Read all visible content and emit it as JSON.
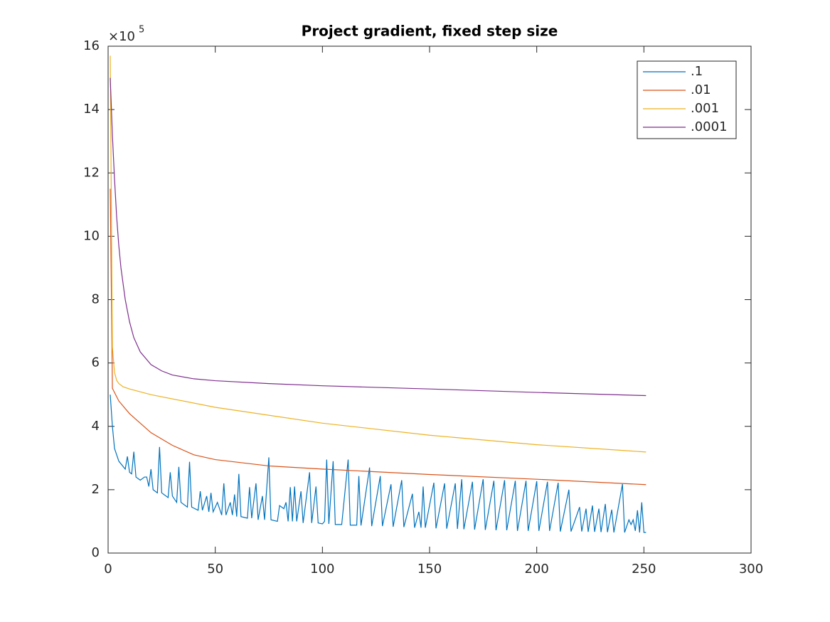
{
  "chart_data": {
    "type": "line",
    "title": "Project gradient, fixed step size",
    "y_multiplier": "×10",
    "y_exponent": "5",
    "xlim": [
      0,
      300
    ],
    "xticks": [
      0,
      50,
      100,
      150,
      200,
      250,
      300
    ],
    "ylim": [
      0,
      16
    ],
    "yticks": [
      0,
      2,
      4,
      6,
      8,
      10,
      12,
      14,
      16
    ],
    "grid": false,
    "legend": "northeast",
    "series": [
      {
        "name": ".1",
        "color": "#0072bd",
        "x": [
          1,
          2,
          3,
          5,
          8,
          9,
          10,
          11,
          12,
          13,
          15,
          17,
          18,
          19,
          20,
          21,
          23,
          24,
          25,
          28,
          29,
          30,
          32,
          33,
          34,
          37,
          38,
          39,
          42,
          43,
          44,
          46,
          47,
          48,
          49,
          51,
          53,
          54,
          55,
          57,
          58,
          59,
          60,
          61,
          62,
          65,
          66,
          67,
          69,
          70,
          72,
          73,
          75,
          76,
          79,
          80,
          82,
          83,
          84,
          85,
          86,
          87,
          88,
          90,
          91,
          94,
          95,
          97,
          98,
          100,
          101,
          102,
          103,
          105,
          106,
          109,
          112,
          113,
          116,
          117,
          118,
          122,
          123,
          127,
          128,
          132,
          133,
          137,
          138,
          142,
          143,
          145,
          146,
          147,
          148,
          152,
          153,
          157,
          158,
          162,
          163,
          165,
          166,
          170,
          171,
          175,
          176,
          180,
          181,
          185,
          186,
          190,
          191,
          195,
          196,
          200,
          201,
          205,
          206,
          210,
          211,
          215,
          216,
          220,
          221,
          223,
          224,
          226,
          227,
          229,
          230,
          232,
          233,
          235,
          236,
          240,
          241,
          243,
          244,
          245,
          246,
          247,
          248,
          249,
          250,
          251
        ],
        "values": [
          5.0,
          4.0,
          3.3,
          2.9,
          2.65,
          3.05,
          2.55,
          2.5,
          3.2,
          2.4,
          2.3,
          2.4,
          2.4,
          2.1,
          2.65,
          2.0,
          1.9,
          3.35,
          1.9,
          1.75,
          2.55,
          1.8,
          1.6,
          2.72,
          1.6,
          1.45,
          2.88,
          1.45,
          1.35,
          1.95,
          1.35,
          1.8,
          1.3,
          1.9,
          1.3,
          1.6,
          1.2,
          2.2,
          1.2,
          1.6,
          1.2,
          1.85,
          1.15,
          2.5,
          1.15,
          1.1,
          2.08,
          1.1,
          2.2,
          1.05,
          1.8,
          1.05,
          3.02,
          1.05,
          1.0,
          1.5,
          1.4,
          1.6,
          1.0,
          2.08,
          1.0,
          2.1,
          1.0,
          1.95,
          0.95,
          2.55,
          0.95,
          2.1,
          0.95,
          0.92,
          1.0,
          2.95,
          0.92,
          2.9,
          0.9,
          0.9,
          2.95,
          0.88,
          0.88,
          2.43,
          0.87,
          2.7,
          0.85,
          2.43,
          0.85,
          2.17,
          0.83,
          2.3,
          0.82,
          1.87,
          0.8,
          1.3,
          0.8,
          2.1,
          0.8,
          2.22,
          0.78,
          2.2,
          0.77,
          2.2,
          0.76,
          2.33,
          0.75,
          2.25,
          0.74,
          2.33,
          0.73,
          2.28,
          0.72,
          2.3,
          0.72,
          2.28,
          0.7,
          2.28,
          0.7,
          2.27,
          0.7,
          2.25,
          0.7,
          2.22,
          0.68,
          2.0,
          0.68,
          1.45,
          0.68,
          1.4,
          0.67,
          1.5,
          0.67,
          1.4,
          0.66,
          1.55,
          0.66,
          1.37,
          0.65,
          2.18,
          0.65,
          1.05,
          0.9,
          1.05,
          0.7,
          1.35,
          0.65,
          1.6,
          0.65,
          0.65
        ]
      },
      {
        "name": ".01",
        "color": "#d95319",
        "x": [
          1,
          2,
          5,
          10,
          20,
          30,
          40,
          50,
          75,
          100,
          150,
          200,
          251
        ],
        "values": [
          11.5,
          5.2,
          4.8,
          4.4,
          3.8,
          3.4,
          3.1,
          2.95,
          2.75,
          2.65,
          2.48,
          2.33,
          2.16
        ]
      },
      {
        "name": ".001",
        "color": "#edb120",
        "x": [
          1,
          2,
          3,
          4,
          5,
          7,
          10,
          20,
          50,
          100,
          150,
          200,
          251
        ],
        "values": [
          15.7,
          6.5,
          5.7,
          5.45,
          5.35,
          5.25,
          5.18,
          5.0,
          4.6,
          4.1,
          3.72,
          3.42,
          3.19
        ]
      },
      {
        "name": ".0001",
        "color": "#7e2f8e",
        "x": [
          1,
          2,
          3,
          4,
          5,
          6,
          8,
          10,
          12,
          15,
          20,
          25,
          30,
          40,
          50,
          75,
          100,
          150,
          200,
          251
        ],
        "values": [
          15.0,
          13.2,
          11.8,
          10.6,
          9.7,
          9.0,
          8.0,
          7.3,
          6.8,
          6.35,
          5.95,
          5.75,
          5.62,
          5.5,
          5.44,
          5.35,
          5.28,
          5.18,
          5.07,
          4.97
        ]
      }
    ]
  }
}
